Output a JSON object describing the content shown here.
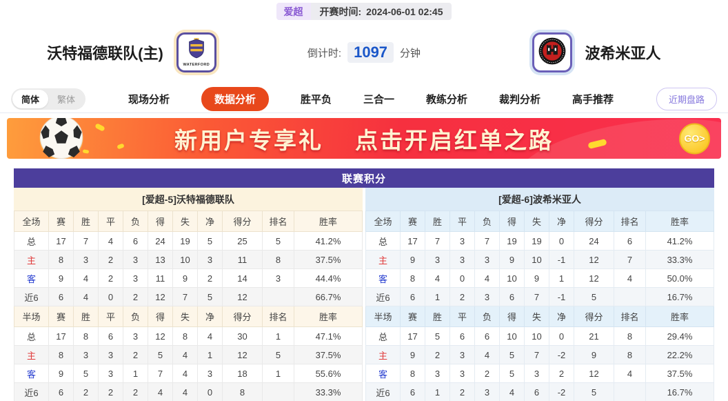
{
  "match_header": {
    "league_badge": "爱超",
    "kickoff_label": "开赛时间:",
    "kickoff_time": "2024-06-01 02:45",
    "home_team": "沃特福德联队(主)",
    "home_badge_text": "WATERFORD",
    "away_team": "波希米亚人",
    "countdown_label": "倒计时:",
    "countdown_value": "1097",
    "countdown_unit": "分钟"
  },
  "nav": {
    "lang_toggle": [
      {
        "label": "简体",
        "active": true
      },
      {
        "label": "繁体",
        "active": false
      }
    ],
    "tabs": [
      {
        "label": "现场分析",
        "active": false
      },
      {
        "label": "数据分析",
        "active": true
      },
      {
        "label": "胜平负",
        "active": false
      },
      {
        "label": "三合一",
        "active": false
      },
      {
        "label": "教练分析",
        "active": false
      },
      {
        "label": "裁判分析",
        "active": false
      },
      {
        "label": "高手推荐",
        "active": false
      }
    ],
    "recent_button": "近期盘路"
  },
  "banner": {
    "text_left": "新用户专享礼",
    "text_right": "点击开启红单之路",
    "go_label": "GO>"
  },
  "table": {
    "title": "联赛积分",
    "sides": [
      {
        "section_title": "[爱超-5]沃特福德联队",
        "sections": [
          {
            "header": [
              "全场",
              "赛",
              "胜",
              "平",
              "负",
              "得",
              "失",
              "净",
              "得分",
              "排名",
              "胜率"
            ],
            "rows": [
              {
                "label": "总",
                "type": "",
                "cells": [
                  "17",
                  "7",
                  "4",
                  "6",
                  "24",
                  "19",
                  "5",
                  "25",
                  "5",
                  "41.2%"
                ]
              },
              {
                "label": "主",
                "type": "home",
                "cells": [
                  "8",
                  "3",
                  "2",
                  "3",
                  "13",
                  "10",
                  "3",
                  "11",
                  "8",
                  "37.5%"
                ]
              },
              {
                "label": "客",
                "type": "away",
                "cells": [
                  "9",
                  "4",
                  "2",
                  "3",
                  "11",
                  "9",
                  "2",
                  "14",
                  "3",
                  "44.4%"
                ]
              },
              {
                "label": "近6",
                "type": "",
                "cells": [
                  "6",
                  "4",
                  "0",
                  "2",
                  "12",
                  "7",
                  "5",
                  "12",
                  "",
                  "66.7%"
                ]
              }
            ]
          },
          {
            "header": [
              "半场",
              "赛",
              "胜",
              "平",
              "负",
              "得",
              "失",
              "净",
              "得分",
              "排名",
              "胜率"
            ],
            "rows": [
              {
                "label": "总",
                "type": "",
                "cells": [
                  "17",
                  "8",
                  "6",
                  "3",
                  "12",
                  "8",
                  "4",
                  "30",
                  "1",
                  "47.1%"
                ]
              },
              {
                "label": "主",
                "type": "home",
                "cells": [
                  "8",
                  "3",
                  "3",
                  "2",
                  "5",
                  "4",
                  "1",
                  "12",
                  "5",
                  "37.5%"
                ]
              },
              {
                "label": "客",
                "type": "away",
                "cells": [
                  "9",
                  "5",
                  "3",
                  "1",
                  "7",
                  "4",
                  "3",
                  "18",
                  "1",
                  "55.6%"
                ]
              },
              {
                "label": "近6",
                "type": "",
                "cells": [
                  "6",
                  "2",
                  "2",
                  "2",
                  "4",
                  "4",
                  "0",
                  "8",
                  "",
                  "33.3%"
                ]
              }
            ]
          }
        ]
      },
      {
        "section_title": "[爱超-6]波希米亚人",
        "sections": [
          {
            "header": [
              "全场",
              "赛",
              "胜",
              "平",
              "负",
              "得",
              "失",
              "净",
              "得分",
              "排名",
              "胜率"
            ],
            "rows": [
              {
                "label": "总",
                "type": "",
                "cells": [
                  "17",
                  "7",
                  "3",
                  "7",
                  "19",
                  "19",
                  "0",
                  "24",
                  "6",
                  "41.2%"
                ]
              },
              {
                "label": "主",
                "type": "home",
                "cells": [
                  "9",
                  "3",
                  "3",
                  "3",
                  "9",
                  "10",
                  "-1",
                  "12",
                  "7",
                  "33.3%"
                ]
              },
              {
                "label": "客",
                "type": "away",
                "cells": [
                  "8",
                  "4",
                  "0",
                  "4",
                  "10",
                  "9",
                  "1",
                  "12",
                  "4",
                  "50.0%"
                ]
              },
              {
                "label": "近6",
                "type": "",
                "cells": [
                  "6",
                  "1",
                  "2",
                  "3",
                  "6",
                  "7",
                  "-1",
                  "5",
                  "",
                  "16.7%"
                ]
              }
            ]
          },
          {
            "header": [
              "半场",
              "赛",
              "胜",
              "平",
              "负",
              "得",
              "失",
              "净",
              "得分",
              "排名",
              "胜率"
            ],
            "rows": [
              {
                "label": "总",
                "type": "",
                "cells": [
                  "17",
                  "5",
                  "6",
                  "6",
                  "10",
                  "10",
                  "0",
                  "21",
                  "8",
                  "29.4%"
                ]
              },
              {
                "label": "主",
                "type": "home",
                "cells": [
                  "9",
                  "2",
                  "3",
                  "4",
                  "5",
                  "7",
                  "-2",
                  "9",
                  "8",
                  "22.2%"
                ]
              },
              {
                "label": "客",
                "type": "away",
                "cells": [
                  "8",
                  "3",
                  "3",
                  "2",
                  "5",
                  "3",
                  "2",
                  "12",
                  "4",
                  "37.5%"
                ]
              },
              {
                "label": "近6",
                "type": "",
                "cells": [
                  "6",
                  "1",
                  "2",
                  "3",
                  "4",
                  "6",
                  "-2",
                  "5",
                  "",
                  "16.7%"
                ]
              }
            ]
          }
        ]
      }
    ]
  }
}
